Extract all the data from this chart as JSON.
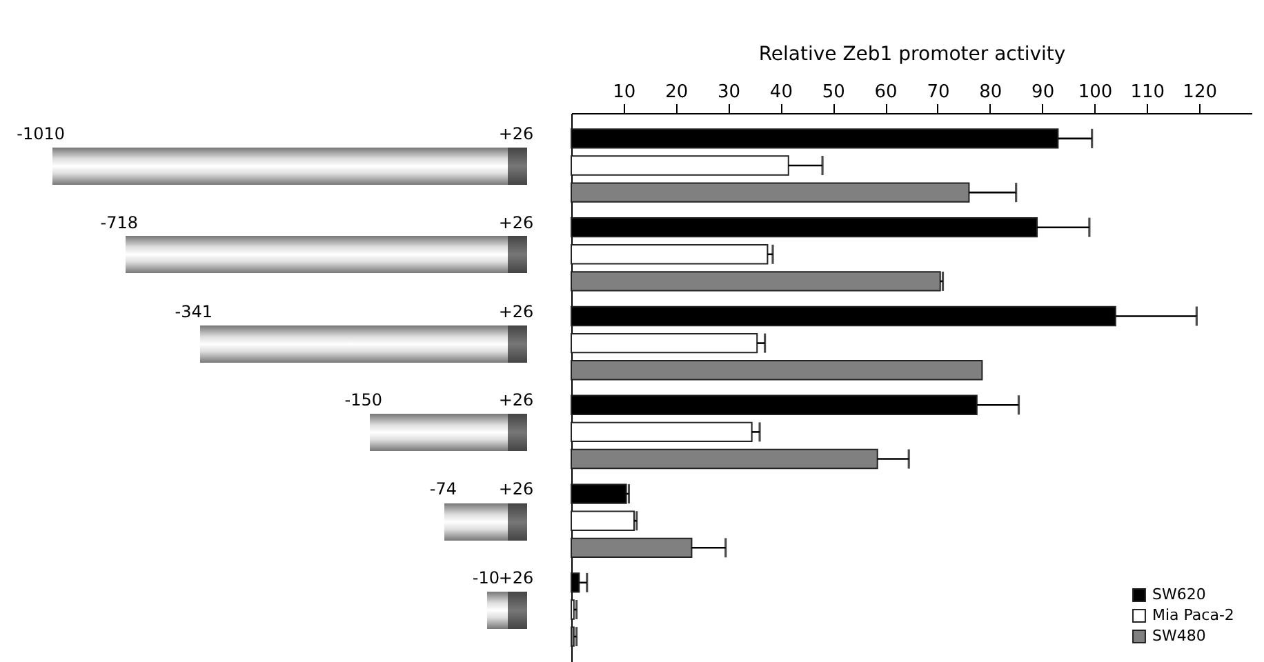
{
  "chart_data": {
    "type": "bar",
    "orientation": "horizontal",
    "xlabel": "Relative Zeb1 promoter activity",
    "categories": [
      null,
      null,
      null,
      null,
      null,
      null
    ],
    "series": [
      {
        "name": "SW620",
        "color": "#000000",
        "values": [
          93,
          89,
          104,
          77.5,
          10.5,
          1.5
        ],
        "errors": [
          [
            93,
            99.5
          ],
          [
            89,
            99
          ],
          [
            104,
            119.5
          ],
          [
            77.5,
            85.5
          ],
          [
            10.5,
            11
          ],
          [
            1.5,
            3
          ]
        ]
      },
      {
        "name": "Mia Paca-2",
        "color": "#ffffff",
        "values": [
          41.5,
          37.5,
          35.5,
          34.5,
          12,
          0.5
        ],
        "errors": [
          [
            41.5,
            48
          ],
          [
            37.5,
            38.5
          ],
          [
            35.5,
            37
          ],
          [
            34.5,
            36
          ],
          [
            12,
            12.5
          ],
          [
            0.5,
            1
          ]
        ]
      },
      {
        "name": "SW480",
        "color": "#808080",
        "values": [
          76,
          70.5,
          78.5,
          58.5,
          23,
          0.5
        ],
        "errors": [
          [
            76,
            85
          ],
          [
            70.5,
            71
          ],
          null,
          [
            58.5,
            64.5
          ],
          [
            23,
            29.5
          ],
          [
            0.5,
            1
          ]
        ]
      }
    ],
    "xlim": [
      0,
      130
    ],
    "xticks": [
      10,
      20,
      30,
      40,
      50,
      60,
      70,
      80,
      90,
      100,
      110,
      120
    ],
    "grid": false,
    "legend": "bottom right",
    "annotations": [
      "-1010",
      "+26",
      "-718",
      "+26",
      "-341",
      "+26",
      "-150",
      "+26",
      "-74",
      "+26",
      "-10",
      "+26"
    ]
  }
}
